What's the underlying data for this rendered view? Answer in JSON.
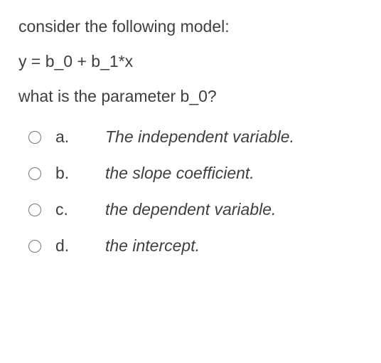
{
  "question": {
    "line1": "consider the following model:",
    "line2": "y = b_0 + b_1*x",
    "line3": "what is the parameter b_0?",
    "text_color": "#3f3f3f",
    "font_size": 23,
    "background_color": "#ffffff"
  },
  "options": [
    {
      "letter": "a.",
      "text": "The independent variable."
    },
    {
      "letter": "b.",
      "text": "the slope coefficient."
    },
    {
      "letter": "c.",
      "text": "the dependent variable."
    },
    {
      "letter": "d.",
      "text": "the intercept."
    }
  ],
  "option_style": {
    "letter_font_size": 23,
    "text_font_size": 23,
    "text_font_style": "italic",
    "text_color": "#3f3f3f",
    "row_spacing": 24
  }
}
